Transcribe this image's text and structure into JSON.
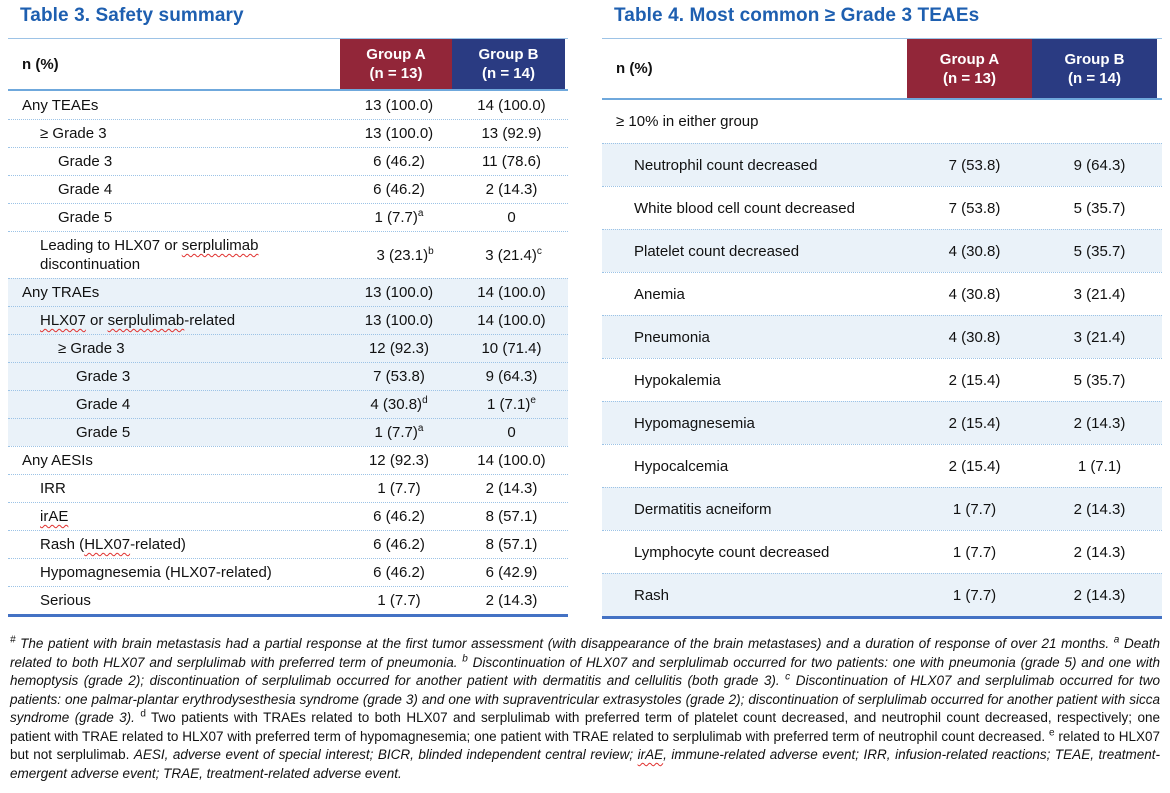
{
  "colors": {
    "group_a": "#922639",
    "group_b": "#2A3B82",
    "title": "#1E5FB0",
    "row_shade": "#EAF2F9",
    "dotted_separator": "#9CC3E6",
    "table_bottom_border": "#4472C4",
    "spellcheck_wavy": "#E0302E"
  },
  "tables": [
    {
      "title": "Table 3. Safety summary",
      "col_header": "n (%)",
      "group_a": "Group A\n(n = 13)",
      "group_b": "Group B\n(n = 14)",
      "rows": [
        {
          "label": "Any TEAEs",
          "indent": 0,
          "a": "13 (100.0)",
          "b": "14 (100.0)",
          "shaded": false
        },
        {
          "label": "≥ Grade 3",
          "indent": 1,
          "a": "13 (100.0)",
          "b": "13 (92.9)",
          "shaded": false
        },
        {
          "label": "Grade 3",
          "indent": 2,
          "a": "6 (46.2)",
          "b": "11 (78.6)",
          "shaded": false
        },
        {
          "label": "Grade 4",
          "indent": 2,
          "a": "6 (46.2)",
          "b": "2 (14.3)",
          "shaded": false
        },
        {
          "label": "Grade 5",
          "indent": 2,
          "a": "1 (7.7)",
          "a_sup": "a",
          "b": "0",
          "shaded": false
        },
        {
          "label": "Leading to HLX07 or serplulimab discontinuation",
          "indent": 1,
          "a": "3 (23.1)",
          "a_sup": "b",
          "b": "3 (21.4)",
          "b_sup": "c",
          "shaded": false,
          "wavy": [
            "serplulimab"
          ]
        },
        {
          "label": "Any TRAEs",
          "indent": 0,
          "a": "13 (100.0)",
          "b": "14 (100.0)",
          "shaded": true
        },
        {
          "label": "HLX07 or serplulimab-related",
          "indent": 1,
          "a": "13 (100.0)",
          "b": "14 (100.0)",
          "shaded": true,
          "wavy": [
            "HLX07",
            "serplulimab"
          ]
        },
        {
          "label": "≥ Grade 3",
          "indent": 2,
          "a": "12 (92.3)",
          "b": "10 (71.4)",
          "shaded": true
        },
        {
          "label": "Grade 3",
          "indent": 3,
          "a": "7 (53.8)",
          "b": "9 (64.3)",
          "shaded": true
        },
        {
          "label": "Grade 4",
          "indent": 3,
          "a": "4 (30.8)",
          "a_sup": "d",
          "b": "1 (7.1)",
          "b_sup": "e",
          "shaded": true
        },
        {
          "label": "Grade 5",
          "indent": 3,
          "a": "1 (7.7)",
          "a_sup": "a",
          "b": "0",
          "shaded": true
        },
        {
          "label": "Any AESIs",
          "indent": 0,
          "a": "12 (92.3)",
          "b": "14 (100.0)",
          "shaded": false
        },
        {
          "label": "IRR",
          "indent": 1,
          "a": "1 (7.7)",
          "b": "2 (14.3)",
          "shaded": false
        },
        {
          "label": "irAE",
          "indent": 1,
          "a": "6 (46.2)",
          "b": "8 (57.1)",
          "shaded": false,
          "wavy": [
            "irAE"
          ]
        },
        {
          "label": "Rash (HLX07-related)",
          "indent": 1,
          "a": "6 (46.2)",
          "b": "8 (57.1)",
          "shaded": false,
          "wavy": [
            "HLX07"
          ]
        },
        {
          "label": "Hypomagnesemia (HLX07-related)",
          "indent": 1,
          "a": "6 (46.2)",
          "b": "6 (42.9)",
          "shaded": false
        },
        {
          "label": "Serious",
          "indent": 1,
          "a": "1 (7.7)",
          "b": "2 (14.3)",
          "shaded": false
        }
      ]
    },
    {
      "title": "Table 4. Most common ≥ Grade 3 TEAEs",
      "col_header": "n (%)",
      "group_a": "Group A\n(n = 13)",
      "group_b": "Group B\n(n = 14)",
      "rows": [
        {
          "label": "≥ 10% in either group",
          "indent": 0,
          "a": "",
          "b": "",
          "shaded": false
        },
        {
          "label": "Neutrophil count decreased",
          "indent": 1,
          "a": "7 (53.8)",
          "b": "9 (64.3)",
          "shaded": true
        },
        {
          "label": "White blood cell count decreased",
          "indent": 1,
          "a": "7 (53.8)",
          "b": "5 (35.7)",
          "shaded": false
        },
        {
          "label": "Platelet count decreased",
          "indent": 1,
          "a": "4 (30.8)",
          "b": "5 (35.7)",
          "shaded": true
        },
        {
          "label": "Anemia",
          "indent": 1,
          "a": "4 (30.8)",
          "b": "3 (21.4)",
          "shaded": false
        },
        {
          "label": "Pneumonia",
          "indent": 1,
          "a": "4 (30.8)",
          "b": "3 (21.4)",
          "shaded": true
        },
        {
          "label": "Hypokalemia",
          "indent": 1,
          "a": "2 (15.4)",
          "b": "5 (35.7)",
          "shaded": false
        },
        {
          "label": "Hypomagnesemia",
          "indent": 1,
          "a": "2 (15.4)",
          "b": "2 (14.3)",
          "shaded": true
        },
        {
          "label": "Hypocalcemia",
          "indent": 1,
          "a": "2 (15.4)",
          "b": "1 (7.1)",
          "shaded": false
        },
        {
          "label": "Dermatitis acneiform",
          "indent": 1,
          "a": "1 (7.7)",
          "b": "2 (14.3)",
          "shaded": true
        },
        {
          "label": "Lymphocyte count decreased",
          "indent": 1,
          "a": "1 (7.7)",
          "b": "2 (14.3)",
          "shaded": false
        },
        {
          "label": "Rash",
          "indent": 1,
          "a": "1 (7.7)",
          "b": "2 (14.3)",
          "shaded": true
        }
      ]
    }
  ],
  "footnote": {
    "segments": [
      {
        "text": "#",
        "sup": true,
        "italic": true
      },
      {
        "text": " The patient with brain metastasis had a partial response at the first tumor assessment (with disappearance of the brain metastases) and a duration of response of over 21 months. ",
        "italic": true
      },
      {
        "text": "a",
        "sup": true,
        "italic": true
      },
      {
        "text": " Death related to both HLX07 and serplulimab with preferred term of pneumonia. ",
        "italic": true
      },
      {
        "text": "b",
        "sup": true,
        "italic": true
      },
      {
        "text": " Discontinuation of HLX07 and serplulimab occurred for two patients: one with pneumonia (grade 5) and one with hemoptysis (grade 2); discontinuation of serplulimab occurred for another patient with dermatitis and cellulitis (both grade 3). ",
        "italic": true
      },
      {
        "text": "c",
        "sup": true,
        "italic": true
      },
      {
        "text": " Discontinuation of HLX07 and serplulimab occurred for two patients: one palmar-plantar erythrodysesthesia syndrome (grade 3) and one with supraventricular extrasystoles (grade 2); discontinuation of serplulimab occurred for another patient with sicca syndrome (grade 3). ",
        "italic": true
      },
      {
        "text": "d",
        "sup": true,
        "italic": false
      },
      {
        "text": " Two patients with TRAEs related to both HLX07 and serplulimab with preferred term of platelet count decreased, and neutrophil count decreased, respectively; one patient with TRAE related to HLX07 with preferred term of hypomagnesemia; one patient with TRAE related to serplulimab with preferred term of neutrophil count decreased. ",
        "italic": false
      },
      {
        "text": "e",
        "sup": true,
        "italic": false
      },
      {
        "text": " related to HLX07 but not serplulimab. ",
        "italic": false
      },
      {
        "text": "AESI, adverse event of special interest; BICR, blinded independent central review; ",
        "italic": true
      },
      {
        "text": "irAE",
        "italic": true,
        "wavy": true
      },
      {
        "text": ", immune-related adverse event; IRR, infusion-related reactions; TEAE, treatment-emergent adverse event; TRAE, treatment-related adverse event.",
        "italic": true
      }
    ]
  }
}
